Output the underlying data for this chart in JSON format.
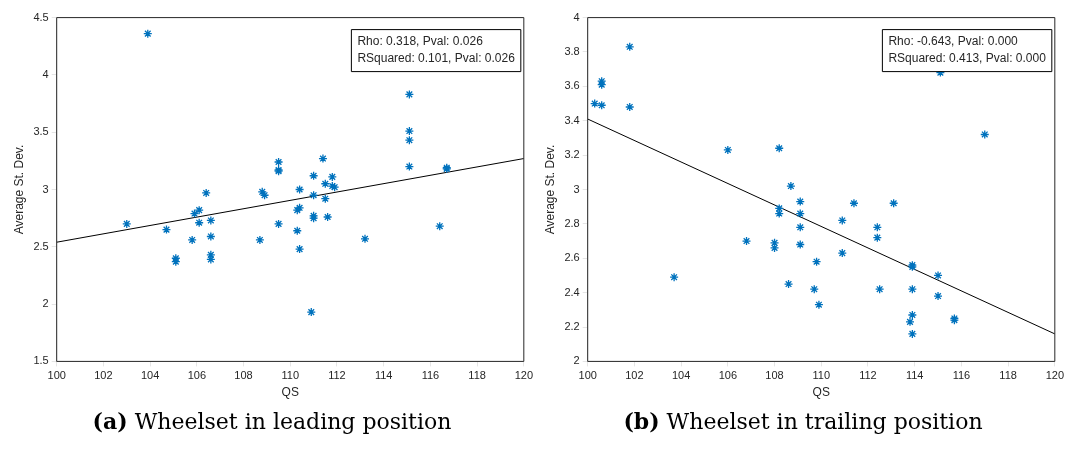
{
  "chart_data": [
    {
      "type": "scatter",
      "xlabel": "QS",
      "ylabel": "Average St. Dev.",
      "xlim": [
        100,
        120
      ],
      "xticks": [
        100,
        102,
        104,
        106,
        108,
        110,
        112,
        114,
        116,
        118,
        120
      ],
      "ylim": [
        1.5,
        4.5
      ],
      "yticks": [
        1.5,
        2,
        2.5,
        3,
        3.5,
        4,
        4.5
      ],
      "grid": false,
      "legend": false,
      "annotations": [
        "Rho: 0.318, Pval: 0.026",
        "RSquared: 0.101, Pval: 0.026",
        "(a) Wheelset in leading position"
      ],
      "series": [
        {
          "type": "scatter",
          "color": "#0072bd",
          "marker": "cross",
          "x": [
            103.0,
            103.9,
            104.7,
            105.1,
            105.1,
            105.8,
            105.9,
            106.1,
            106.1,
            106.4,
            106.6,
            106.6,
            106.6,
            106.6,
            108.7,
            108.8,
            108.9,
            109.5,
            109.5,
            109.5,
            109.5,
            110.3,
            110.3,
            110.4,
            110.4,
            110.4,
            110.9,
            111.0,
            111.0,
            111.0,
            111.0,
            111.4,
            111.5,
            111.5,
            111.6,
            111.8,
            111.8,
            111.9,
            113.2,
            115.1,
            115.1,
            115.1,
            115.1,
            116.4,
            116.7,
            116.7
          ],
          "values": [
            2.7,
            4.36,
            2.65,
            2.4,
            2.37,
            2.56,
            2.79,
            2.82,
            2.71,
            2.97,
            2.73,
            2.59,
            2.43,
            2.39,
            2.56,
            2.98,
            2.95,
            2.7,
            3.24,
            3.17,
            3.16,
            2.64,
            2.82,
            2.84,
            3.0,
            2.48,
            1.93,
            3.12,
            2.95,
            2.77,
            2.75,
            3.27,
            3.05,
            2.92,
            2.76,
            3.11,
            3.03,
            3.02,
            2.57,
            3.83,
            3.51,
            3.43,
            3.2,
            2.68,
            3.19,
            3.18
          ]
        },
        {
          "type": "line",
          "color": "#000000",
          "marker": "none",
          "line_style": "solid",
          "x": [
            100,
            120
          ],
          "values": [
            2.54,
            3.27
          ]
        }
      ]
    },
    {
      "type": "scatter",
      "xlabel": "QS",
      "ylabel": "Average St. Dev.",
      "xlim": [
        100,
        120
      ],
      "xticks": [
        100,
        102,
        104,
        106,
        108,
        110,
        112,
        114,
        116,
        118,
        120
      ],
      "ylim": [
        2,
        4
      ],
      "yticks": [
        2,
        2.2,
        2.4,
        2.6,
        2.8,
        3,
        3.2,
        3.4,
        3.6,
        3.8,
        4
      ],
      "grid": false,
      "legend": false,
      "annotations": [
        "Rho: -0.643, Pval: 0.000",
        "RSquared: 0.413, Pval: 0.000",
        "(b) Wheelset in trailing position"
      ],
      "series": [
        {
          "type": "scatter",
          "color": "#0072bd",
          "marker": "cross",
          "x": [
            100.3,
            100.6,
            100.6,
            100.6,
            101.8,
            101.8,
            103.7,
            106.0,
            106.8,
            108.0,
            108.0,
            108.2,
            108.2,
            108.2,
            108.6,
            108.7,
            109.1,
            109.1,
            109.1,
            109.1,
            109.7,
            109.8,
            109.9,
            110.9,
            110.9,
            111.4,
            112.4,
            112.4,
            112.5,
            113.1,
            113.8,
            113.9,
            113.9,
            113.9,
            113.9,
            113.9,
            115.0,
            115.0,
            115.1,
            115.7,
            115.7,
            117.0
          ],
          "values": [
            3.5,
            3.63,
            3.61,
            3.49,
            3.83,
            3.48,
            2.49,
            3.23,
            2.7,
            2.69,
            2.66,
            3.24,
            2.89,
            2.86,
            2.45,
            3.02,
            2.93,
            2.86,
            2.78,
            2.68,
            2.42,
            2.58,
            2.33,
            2.82,
            2.63,
            2.92,
            2.78,
            2.72,
            2.42,
            2.92,
            2.23,
            2.56,
            2.55,
            2.42,
            2.27,
            2.16,
            2.5,
            2.38,
            3.68,
            2.25,
            2.24,
            3.32
          ]
        },
        {
          "type": "line",
          "color": "#000000",
          "marker": "none",
          "line_style": "solid",
          "x": [
            100,
            120
          ],
          "values": [
            3.41,
            2.16
          ]
        }
      ]
    }
  ]
}
